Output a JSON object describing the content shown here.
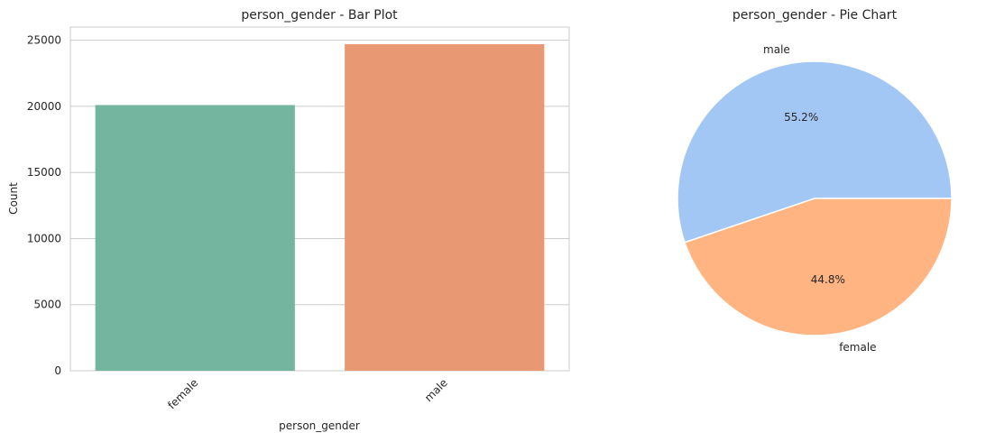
{
  "chart_data": [
    {
      "type": "bar",
      "title": "person_gender - Bar Plot",
      "xlabel": "person_gender",
      "ylabel": "Count",
      "categories": [
        "female",
        "male"
      ],
      "values": [
        20100,
        24700
      ],
      "ylim": [
        0,
        26000
      ],
      "yticks": [
        0,
        5000,
        10000,
        15000,
        20000,
        25000
      ],
      "colors": [
        "#73b59f",
        "#e99874"
      ],
      "grid": true
    },
    {
      "type": "pie",
      "title": "person_gender - Pie Chart",
      "labels": [
        "male",
        "female"
      ],
      "values": [
        55.2,
        44.8
      ],
      "autopct": [
        "55.2%",
        "44.8%"
      ],
      "colors": [
        "#a3c7f4",
        "#ffb482"
      ]
    }
  ]
}
